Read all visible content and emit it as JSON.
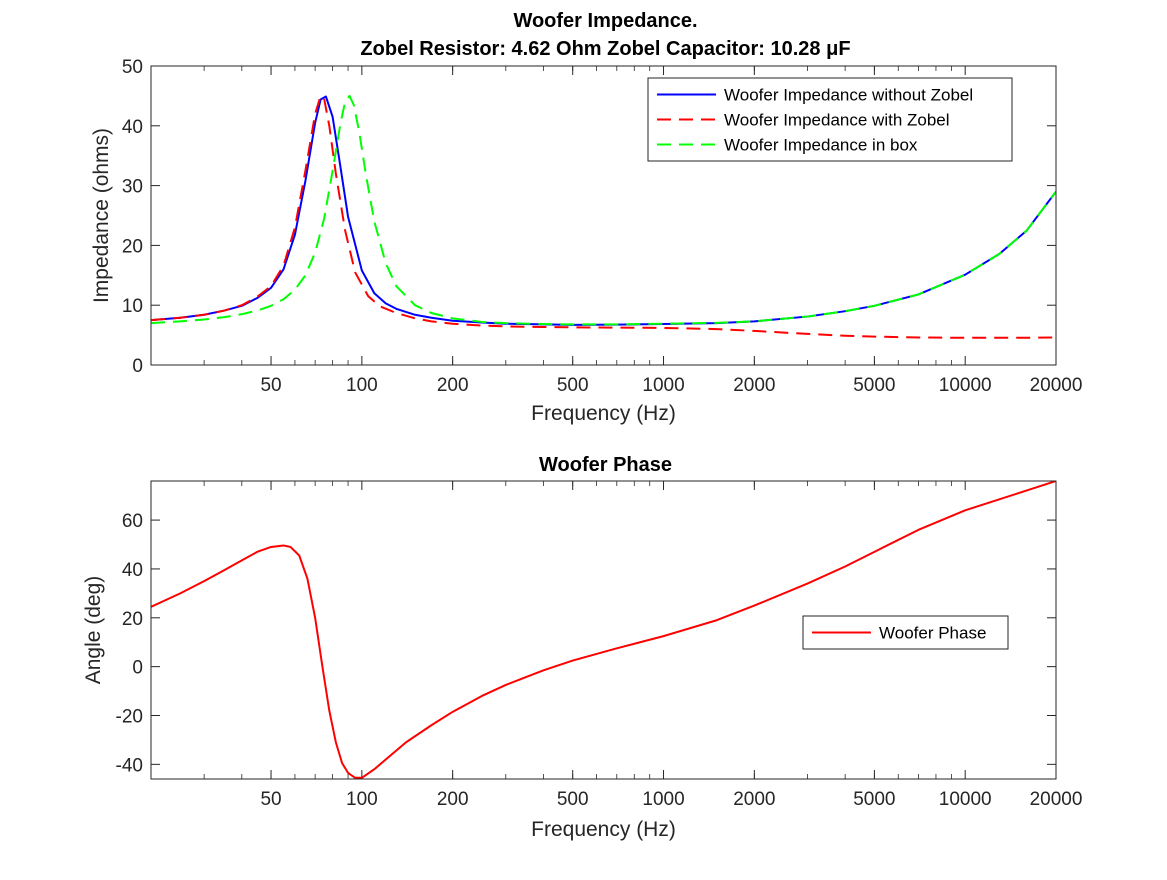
{
  "chart_data": [
    {
      "type": "line",
      "title_lines": [
        "Woofer Impedance.",
        "Zobel Resistor: 4.62 Ohm Zobel Capacitor: 10.28 μF"
      ],
      "xlabel": "Frequency (Hz)",
      "ylabel": "Impedance (ohms)",
      "xscale": "log",
      "xlim": [
        20,
        20000
      ],
      "ylim": [
        0,
        50
      ],
      "xticks": [
        50,
        100,
        200,
        500,
        1000,
        2000,
        5000,
        10000,
        20000
      ],
      "yticks": [
        0,
        10,
        20,
        30,
        40,
        50
      ],
      "legend_position": "top-right",
      "series": [
        {
          "name": "Woofer Impedance without Zobel",
          "color": "#0000ff",
          "style": "solid",
          "x": [
            20,
            25,
            30,
            35,
            40,
            45,
            50,
            55,
            60,
            65,
            70,
            73,
            76,
            80,
            85,
            90,
            100,
            110,
            120,
            130,
            150,
            170,
            200,
            250,
            300,
            400,
            500,
            700,
            1000,
            1500,
            2000,
            3000,
            4000,
            5000,
            7000,
            10000,
            13000,
            16000,
            20000
          ],
          "y": [
            7.5,
            7.9,
            8.4,
            9.1,
            9.9,
            11.2,
            12.9,
            16.0,
            21.8,
            30.8,
            40.5,
            44.4,
            44.9,
            41.5,
            33.0,
            24.8,
            15.8,
            12.0,
            10.3,
            9.4,
            8.4,
            7.9,
            7.4,
            7.1,
            6.9,
            6.8,
            6.7,
            6.75,
            6.85,
            7.0,
            7.3,
            8.1,
            9.0,
            9.9,
            11.8,
            15.1,
            18.6,
            22.5,
            29.0
          ]
        },
        {
          "name": "Woofer Impedance with Zobel",
          "color": "#ff0000",
          "style": "dashed",
          "x": [
            20,
            25,
            30,
            35,
            40,
            45,
            50,
            55,
            60,
            65,
            70,
            73,
            75,
            78,
            82,
            88,
            95,
            105,
            115,
            130,
            150,
            170,
            200,
            250,
            300,
            400,
            500,
            700,
            1000,
            1500,
            2000,
            3000,
            4000,
            5000,
            7000,
            10000,
            15000,
            20000
          ],
          "y": [
            7.5,
            7.9,
            8.4,
            9.1,
            10.0,
            11.4,
            13.2,
            16.6,
            23.0,
            32.5,
            42.0,
            45.0,
            44.5,
            40.0,
            32.0,
            22.5,
            15.5,
            11.5,
            9.8,
            8.7,
            7.8,
            7.3,
            6.9,
            6.6,
            6.45,
            6.35,
            6.3,
            6.25,
            6.2,
            6.0,
            5.7,
            5.2,
            4.9,
            4.75,
            4.6,
            4.55,
            4.55,
            4.6
          ]
        },
        {
          "name": "Woofer Impedance in box",
          "color": "#00ff00",
          "style": "dashed",
          "x": [
            20,
            25,
            30,
            35,
            40,
            45,
            50,
            55,
            60,
            65,
            70,
            75,
            80,
            85,
            88,
            91,
            94,
            98,
            103,
            110,
            120,
            130,
            150,
            170,
            200,
            250,
            300,
            400,
            500,
            700,
            1000,
            1500,
            2000,
            3000,
            4000,
            5000,
            7000,
            10000,
            13000,
            16000,
            20000
          ],
          "y": [
            7.0,
            7.3,
            7.6,
            8.0,
            8.5,
            9.1,
            9.9,
            11.0,
            12.6,
            15.0,
            18.8,
            24.5,
            32.5,
            40.5,
            44.0,
            45.0,
            43.5,
            39.0,
            32.0,
            24.0,
            17.0,
            13.2,
            10.0,
            8.7,
            7.8,
            7.2,
            7.0,
            6.85,
            6.8,
            6.8,
            6.9,
            7.05,
            7.3,
            8.1,
            9.0,
            9.9,
            11.8,
            15.1,
            18.6,
            22.5,
            29.0
          ]
        }
      ]
    },
    {
      "type": "line",
      "title_lines": [
        "Woofer Phase"
      ],
      "xlabel": "Frequency (Hz)",
      "ylabel": "Angle (deg)",
      "xscale": "log",
      "xlim": [
        20,
        20000
      ],
      "ylim": [
        -46,
        76
      ],
      "xticks": [
        50,
        100,
        200,
        500,
        1000,
        2000,
        5000,
        10000,
        20000
      ],
      "yticks": [
        -40,
        -20,
        0,
        20,
        40,
        60
      ],
      "legend_position": "right",
      "series": [
        {
          "name": "Woofer Phase",
          "color": "#ff0000",
          "style": "solid",
          "x": [
            20,
            25,
            30,
            35,
            40,
            45,
            50,
            55,
            58,
            62,
            66,
            70,
            74,
            78,
            82,
            86,
            90,
            95,
            100,
            110,
            120,
            140,
            170,
            200,
            250,
            300,
            400,
            500,
            700,
            1000,
            1500,
            2000,
            3000,
            4000,
            5000,
            7000,
            10000,
            15000,
            20000
          ],
          "y": [
            24.5,
            30.0,
            35.0,
            39.5,
            43.5,
            47.0,
            49.0,
            49.6,
            49.0,
            45.5,
            36.0,
            20.0,
            0.0,
            -18.0,
            -31.0,
            -39.5,
            -43.5,
            -45.5,
            -45.5,
            -42.0,
            -38.0,
            -31.0,
            -24.0,
            -18.5,
            -12.0,
            -7.5,
            -1.5,
            2.5,
            7.5,
            12.5,
            19.0,
            25.0,
            34.0,
            41.0,
            47.0,
            56.0,
            64.0,
            71.0,
            76.0
          ]
        }
      ]
    }
  ]
}
